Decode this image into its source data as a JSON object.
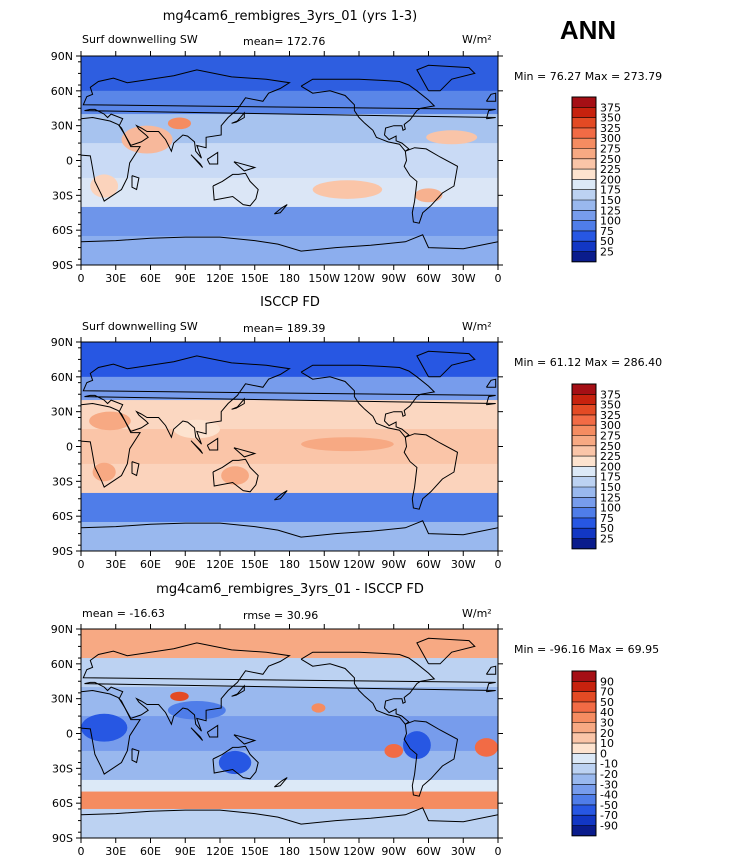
{
  "season": "ANN",
  "unit_label": "W/m²",
  "lon_ticks": [
    "0",
    "30E",
    "60E",
    "90E",
    "120E",
    "150E",
    "180",
    "150W",
    "120W",
    "90W",
    "60W",
    "30W",
    "0"
  ],
  "lat_ticks": [
    "90N",
    "60N",
    "30N",
    "0",
    "30S",
    "60S",
    "90S"
  ],
  "panels": [
    {
      "title": "mg4cam6_rembigres_3yrs_01 (yrs 1-3)",
      "left_label": "Surf downwelling SW",
      "center_label": "mean= 172.76",
      "minmax": "Min =  76.27 Max = 273.79",
      "colorbar": {
        "labels": [
          "375",
          "350",
          "325",
          "300",
          "275",
          "250",
          "225",
          "200",
          "175",
          "150",
          "125",
          "100",
          "75",
          "50",
          "25"
        ],
        "colors": [
          "#a50f15",
          "#c7220e",
          "#e34a24",
          "#f26b45",
          "#f58c61",
          "#f7a983",
          "#fac5a8",
          "#fde3cf",
          "#dce9f7",
          "#bcd2f2",
          "#99b8ee",
          "#779cec",
          "#4f7de9",
          "#2757e3",
          "#1237c4",
          "#0a1c8c"
        ]
      },
      "bands": [
        {
          "lat": [
            60,
            90
          ],
          "color": "#2e5ee0"
        },
        {
          "lat": [
            40,
            60
          ],
          "color": "#5a86e8"
        },
        {
          "lat": [
            15,
            40
          ],
          "color": "#a7c3ef"
        },
        {
          "lat": [
            -15,
            15
          ],
          "color": "#c9daf5"
        },
        {
          "lat": [
            -40,
            -15
          ],
          "color": "#dbe6f6"
        },
        {
          "lat": [
            -65,
            -40
          ],
          "color": "#6e95ea"
        },
        {
          "lat": [
            -90,
            -65
          ],
          "color": "#8caeee"
        }
      ],
      "blobs": [
        {
          "lon": 57,
          "lat": 18,
          "rx": 22,
          "ry": 12,
          "color": "#f7b89b"
        },
        {
          "lon": 85,
          "lat": 32,
          "rx": 10,
          "ry": 5,
          "color": "#f58c61"
        },
        {
          "lon": 20,
          "lat": -22,
          "rx": 12,
          "ry": 10,
          "color": "#fbd3bc"
        },
        {
          "lon": 230,
          "lat": -25,
          "rx": 30,
          "ry": 8,
          "color": "#fac5a8"
        },
        {
          "lon": 320,
          "lat": 20,
          "rx": 22,
          "ry": 6,
          "color": "#f9c4a8"
        },
        {
          "lon": 300,
          "lat": -30,
          "rx": 12,
          "ry": 6,
          "color": "#f7b18f"
        }
      ]
    },
    {
      "title": "ISCCP FD",
      "left_label": "Surf downwelling SW",
      "center_label": "mean= 189.39",
      "minmax": "Min =  61.12 Max = 286.40",
      "colorbar": {
        "labels": [
          "375",
          "350",
          "325",
          "300",
          "275",
          "250",
          "225",
          "200",
          "175",
          "150",
          "125",
          "100",
          "75",
          "50",
          "25"
        ],
        "colors": [
          "#a50f15",
          "#c7220e",
          "#e34a24",
          "#f26b45",
          "#f58c61",
          "#f7a983",
          "#fac5a8",
          "#fde3cf",
          "#dce9f7",
          "#bcd2f2",
          "#99b8ee",
          "#779cec",
          "#4f7de9",
          "#2757e3",
          "#1237c4",
          "#0a1c8c"
        ]
      },
      "bands": [
        {
          "lat": [
            60,
            90
          ],
          "color": "#2757e3"
        },
        {
          "lat": [
            40,
            60
          ],
          "color": "#779cec"
        },
        {
          "lat": [
            15,
            40
          ],
          "color": "#fbd7c1"
        },
        {
          "lat": [
            -15,
            15
          ],
          "color": "#fac5a8"
        },
        {
          "lat": [
            -40,
            -15
          ],
          "color": "#fbd3bc"
        },
        {
          "lat": [
            -65,
            -40
          ],
          "color": "#4f7de9"
        },
        {
          "lat": [
            -90,
            -65
          ],
          "color": "#99b8ee"
        }
      ],
      "blobs": [
        {
          "lon": 230,
          "lat": 2,
          "rx": 40,
          "ry": 6,
          "color": "#f7a983"
        },
        {
          "lon": 25,
          "lat": 22,
          "rx": 18,
          "ry": 8,
          "color": "#f7a983"
        },
        {
          "lon": 20,
          "lat": -22,
          "rx": 10,
          "ry": 8,
          "color": "#f7a983"
        },
        {
          "lon": 133,
          "lat": -25,
          "rx": 12,
          "ry": 8,
          "color": "#f7a983"
        },
        {
          "lon": 100,
          "lat": 15,
          "rx": 20,
          "ry": 8,
          "color": "#fde3cf"
        }
      ]
    },
    {
      "title": "mg4cam6_rembigres_3yrs_01 - ISCCP FD",
      "left_label": "mean = -16.63",
      "center_label": "rmse =  30.96",
      "minmax": "Min = -96.16 Max =  69.95",
      "colorbar": {
        "labels": [
          "90",
          "70",
          "50",
          "40",
          "30",
          "20",
          "10",
          "0",
          "-10",
          "-20",
          "-30",
          "-40",
          "-50",
          "-70",
          "-90"
        ],
        "colors": [
          "#a50f15",
          "#c7220e",
          "#e34a24",
          "#f26b45",
          "#f58c61",
          "#f7a983",
          "#fac5a8",
          "#fde3cf",
          "#dce9f7",
          "#bcd2f2",
          "#99b8ee",
          "#779cec",
          "#4f7de9",
          "#2757e3",
          "#1237c4",
          "#0a1c8c"
        ]
      },
      "bands": [
        {
          "lat": [
            65,
            90
          ],
          "color": "#f7a983"
        },
        {
          "lat": [
            40,
            65
          ],
          "color": "#bcd2f2"
        },
        {
          "lat": [
            15,
            40
          ],
          "color": "#99b8ee"
        },
        {
          "lat": [
            -15,
            15
          ],
          "color": "#779cec"
        },
        {
          "lat": [
            -40,
            -15
          ],
          "color": "#99b8ee"
        },
        {
          "lat": [
            -50,
            -40
          ],
          "color": "#dce9f7"
        },
        {
          "lat": [
            -65,
            -50
          ],
          "color": "#f58c61"
        },
        {
          "lat": [
            -90,
            -65
          ],
          "color": "#bcd2f2"
        }
      ],
      "blobs": [
        {
          "lon": 20,
          "lat": 5,
          "rx": 20,
          "ry": 12,
          "color": "#2757e3"
        },
        {
          "lon": 100,
          "lat": 20,
          "rx": 25,
          "ry": 8,
          "color": "#4f7de9"
        },
        {
          "lon": 133,
          "lat": -25,
          "rx": 14,
          "ry": 10,
          "color": "#2757e3"
        },
        {
          "lon": 290,
          "lat": -10,
          "rx": 12,
          "ry": 12,
          "color": "#2757e3"
        },
        {
          "lon": 85,
          "lat": 32,
          "rx": 8,
          "ry": 4,
          "color": "#e34a24"
        },
        {
          "lon": 270,
          "lat": -15,
          "rx": 8,
          "ry": 6,
          "color": "#f26b45"
        },
        {
          "lon": 205,
          "lat": 22,
          "rx": 6,
          "ry": 4,
          "color": "#f58c61"
        },
        {
          "lon": 350,
          "lat": -12,
          "rx": 10,
          "ry": 8,
          "color": "#f26b45"
        }
      ]
    }
  ]
}
